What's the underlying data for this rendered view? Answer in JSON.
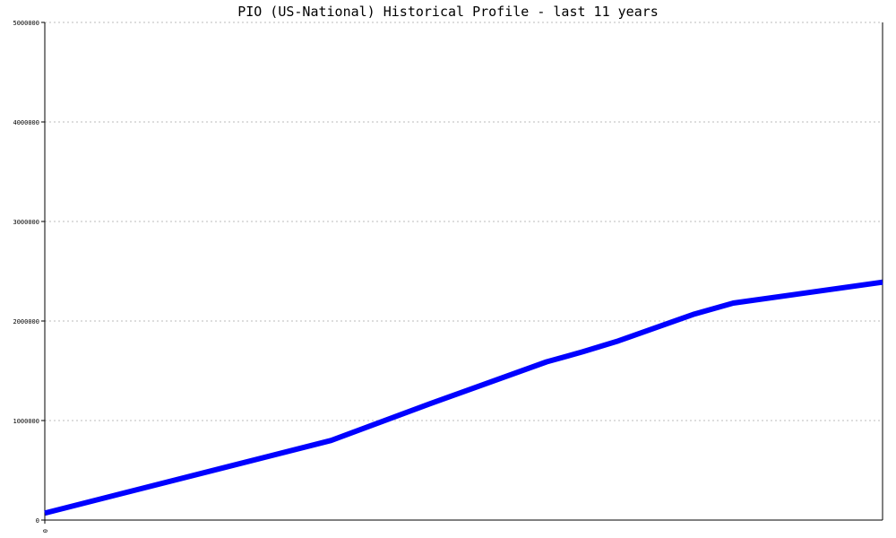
{
  "chart_data": {
    "type": "line",
    "title": "PIO (US-National) Historical Profile - last 11 years",
    "xlabel": "",
    "ylabel": "",
    "ylim": [
      0,
      5000000
    ],
    "xlim": [
      0,
      11
    ],
    "yticks": [
      "0",
      "1000000",
      "2000000",
      "3000000",
      "4000000",
      "5000000"
    ],
    "xticks": [
      "0"
    ],
    "grid": true,
    "series": [
      {
        "color": "#0000ff",
        "x": [
          0,
          3.76,
          5.06,
          6.59,
          7.06,
          7.53,
          8.53,
          9.04,
          11
        ],
        "y": [
          70000,
          800000,
          1170000,
          1590000,
          1690000,
          1800000,
          2070000,
          2180000,
          2390000
        ]
      }
    ]
  }
}
